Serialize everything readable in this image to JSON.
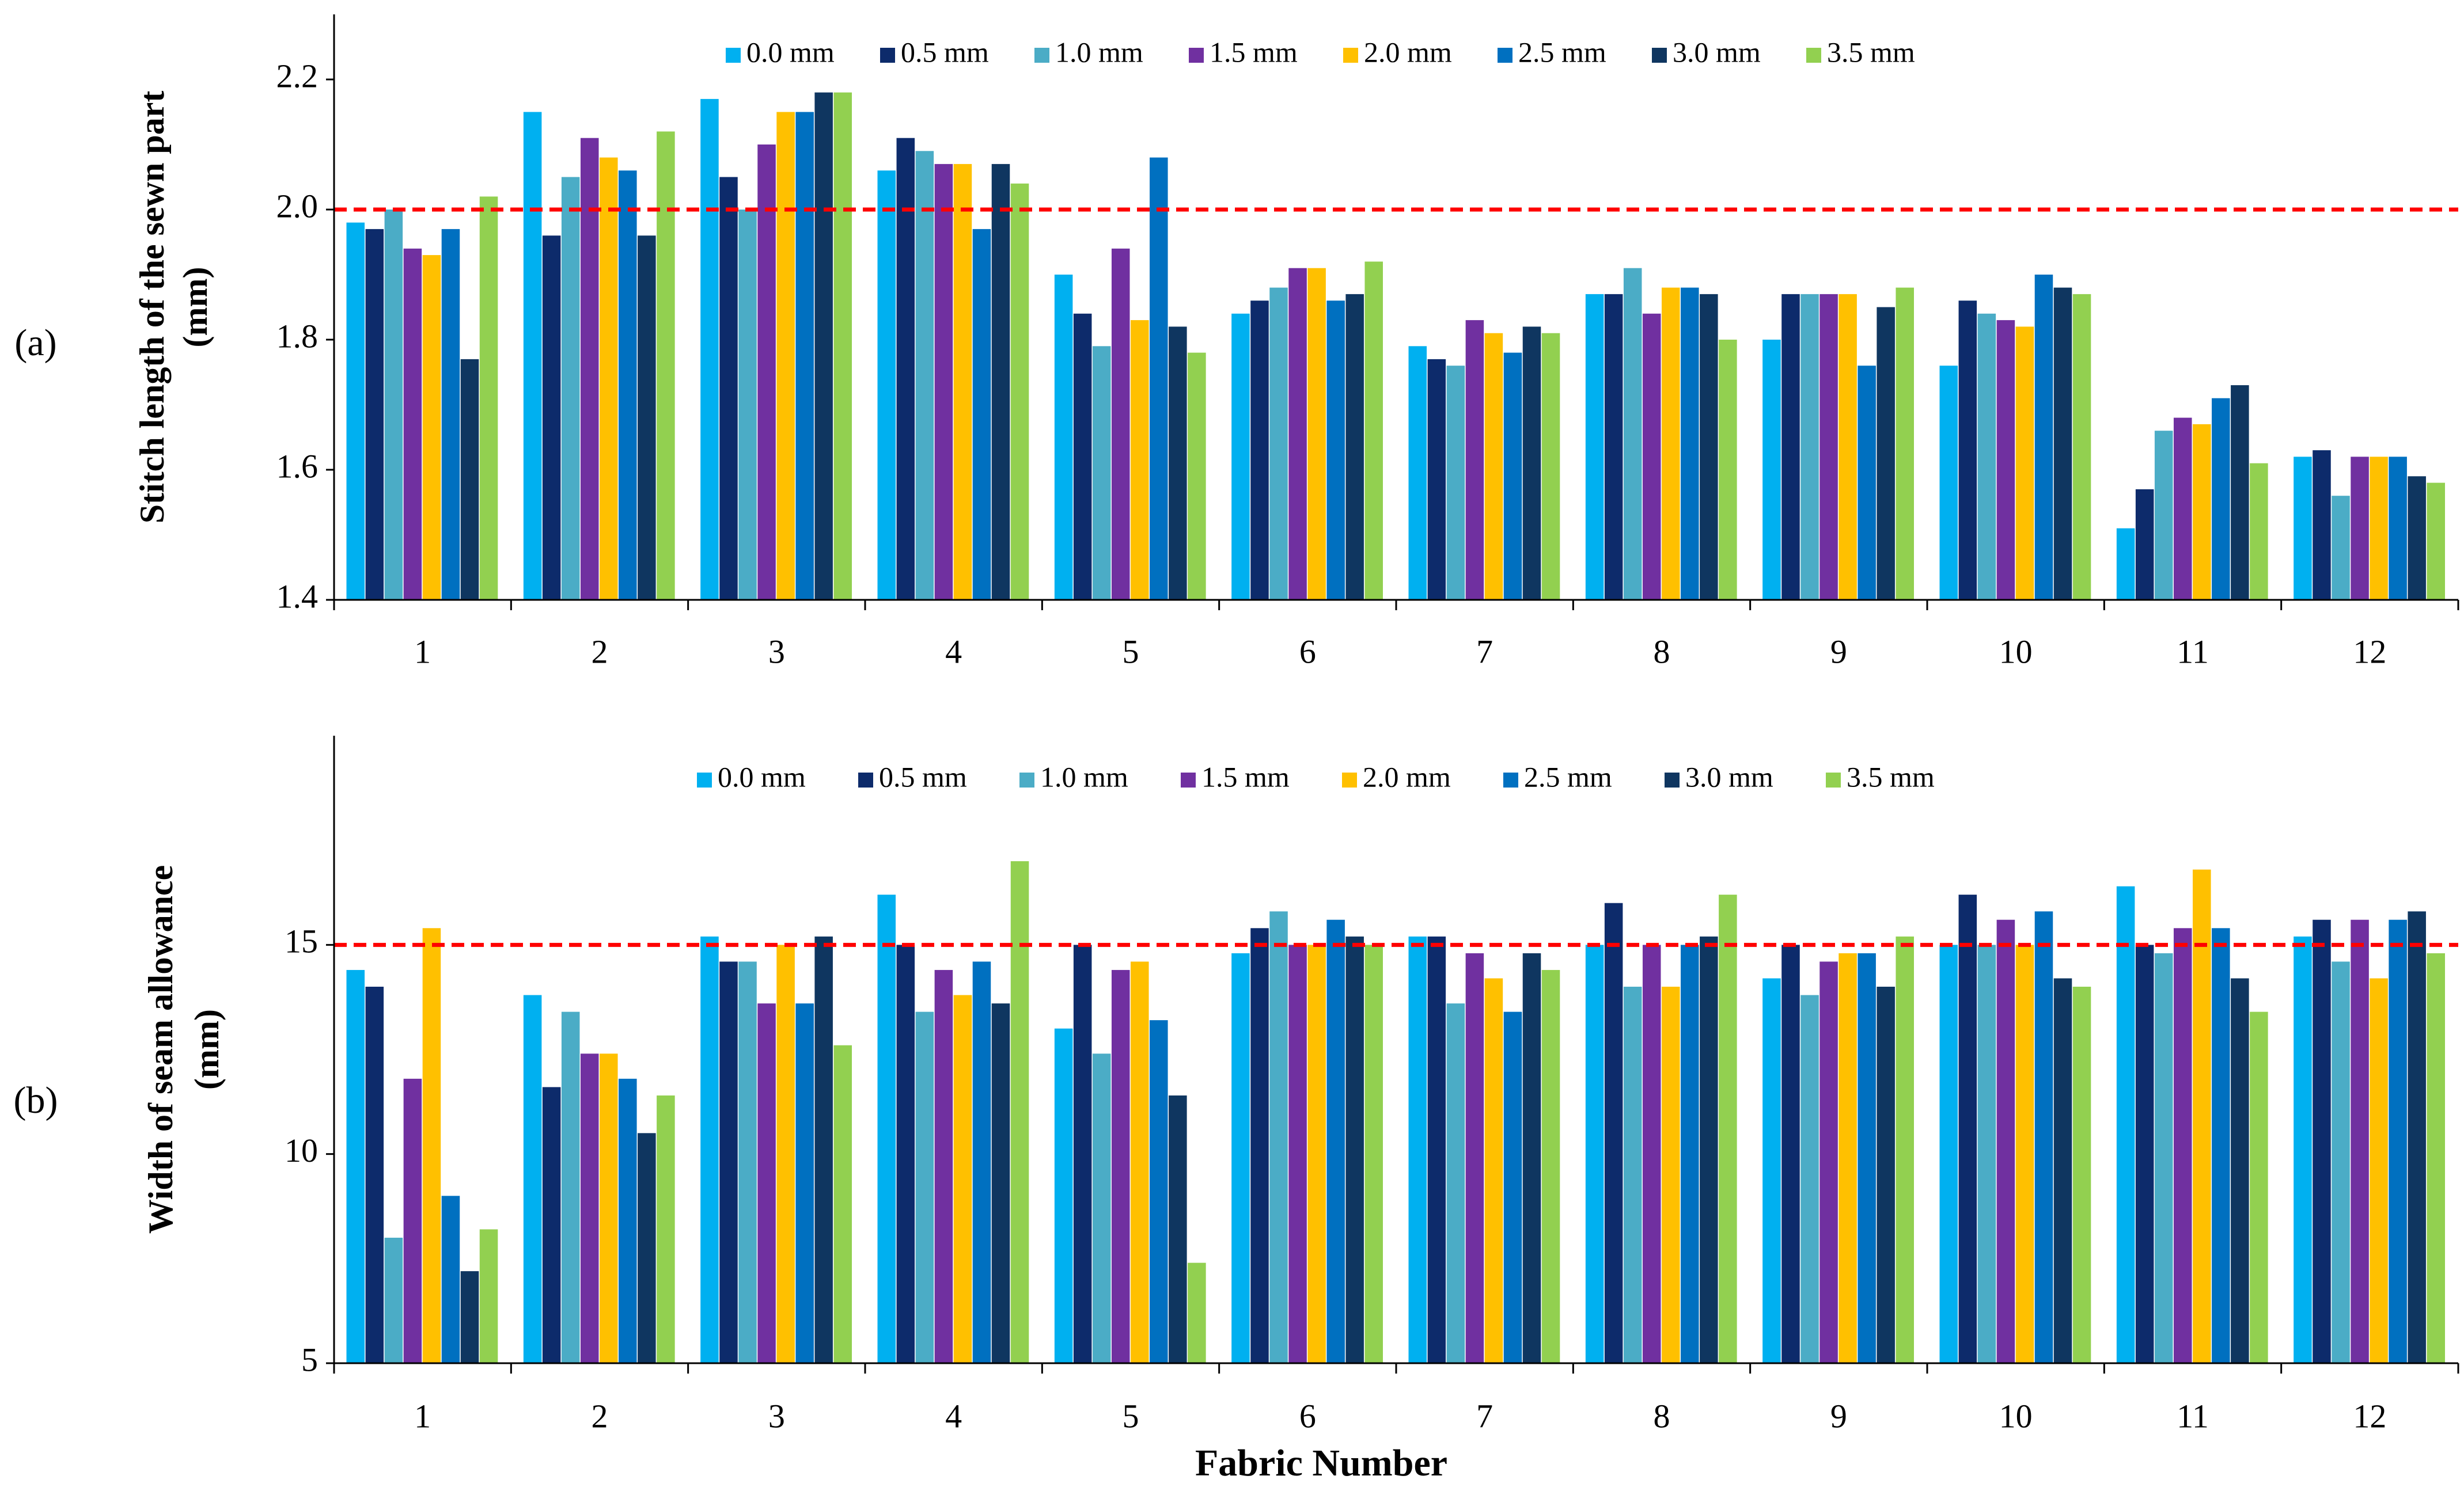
{
  "figure": {
    "panel_labels": [
      "(a)",
      "(b)"
    ],
    "xlabel": "Fabric Number"
  },
  "colors": {
    "series": [
      "#00B0F0",
      "#0D2B6B",
      "#4BACC6",
      "#7030A0",
      "#FFC000",
      "#0070C0",
      "#0F3660",
      "#92D050"
    ],
    "reference_line": "#FF0000",
    "axis": "#000000"
  },
  "chart_data": [
    {
      "type": "bar",
      "panel": "(a)",
      "ylabel_lines": [
        "Stitch length of the sewn part",
        "(mm)"
      ],
      "xlabel": "",
      "categories": [
        "1",
        "2",
        "3",
        "4",
        "5",
        "6",
        "7",
        "8",
        "9",
        "10",
        "11",
        "12"
      ],
      "ylim": [
        1.4,
        2.3
      ],
      "yticks": [
        1.4,
        1.6,
        1.8,
        2.0,
        2.2
      ],
      "ytick_labels": [
        "1.4",
        "1.6",
        "1.8",
        "2.0",
        "2.2"
      ],
      "reference_line": 2.0,
      "legend_position": "top-center",
      "series": [
        {
          "name": "0.0 mm",
          "values": [
            1.98,
            2.15,
            2.17,
            2.06,
            1.9,
            1.84,
            1.79,
            1.87,
            1.8,
            1.76,
            1.51,
            1.62
          ]
        },
        {
          "name": "0.5 mm",
          "values": [
            1.97,
            1.96,
            2.05,
            2.11,
            1.84,
            1.86,
            1.77,
            1.87,
            1.87,
            1.86,
            1.57,
            1.63
          ]
        },
        {
          "name": "1.0 mm",
          "values": [
            2.0,
            2.05,
            2.0,
            2.09,
            1.79,
            1.88,
            1.76,
            1.91,
            1.87,
            1.84,
            1.66,
            1.56
          ]
        },
        {
          "name": "1.5 mm",
          "values": [
            1.94,
            2.11,
            2.1,
            2.07,
            1.94,
            1.91,
            1.83,
            1.84,
            1.87,
            1.83,
            1.68,
            1.62
          ]
        },
        {
          "name": "2.0 mm",
          "values": [
            1.93,
            2.08,
            2.15,
            2.07,
            1.83,
            1.91,
            1.81,
            1.88,
            1.87,
            1.82,
            1.67,
            1.62
          ]
        },
        {
          "name": "2.5 mm",
          "values": [
            1.97,
            2.06,
            2.15,
            1.97,
            2.08,
            1.86,
            1.78,
            1.88,
            1.76,
            1.9,
            1.71,
            1.62
          ]
        },
        {
          "name": "3.0 mm",
          "values": [
            1.77,
            1.96,
            2.18,
            2.07,
            1.82,
            1.87,
            1.82,
            1.87,
            1.85,
            1.88,
            1.73,
            1.59
          ]
        },
        {
          "name": "3.5 mm",
          "values": [
            2.02,
            2.12,
            2.18,
            2.04,
            1.78,
            1.92,
            1.81,
            1.8,
            1.88,
            1.87,
            1.61,
            1.58
          ]
        }
      ]
    },
    {
      "type": "bar",
      "panel": "(b)",
      "ylabel_lines": [
        "Width of seam allowance",
        "(mm)"
      ],
      "xlabel": "Fabric Number",
      "categories": [
        "1",
        "2",
        "3",
        "4",
        "5",
        "6",
        "7",
        "8",
        "9",
        "10",
        "11",
        "12"
      ],
      "ylim": [
        5,
        20
      ],
      "yticks": [
        5,
        10,
        15
      ],
      "ytick_labels": [
        "5",
        "10",
        "15"
      ],
      "reference_line": 15,
      "legend_position": "top-center",
      "series": [
        {
          "name": "0.0 mm",
          "values": [
            14.4,
            13.8,
            15.2,
            16.2,
            13.0,
            14.8,
            15.2,
            15.0,
            14.2,
            15.0,
            16.4,
            15.2
          ]
        },
        {
          "name": "0.5 mm",
          "values": [
            14.0,
            11.6,
            14.6,
            15.0,
            15.0,
            15.4,
            15.2,
            16.0,
            15.0,
            16.2,
            15.0,
            15.6
          ]
        },
        {
          "name": "1.0 mm",
          "values": [
            8.0,
            13.4,
            14.6,
            13.4,
            12.4,
            15.8,
            13.6,
            14.0,
            13.8,
            15.0,
            14.8,
            14.6
          ]
        },
        {
          "name": "1.5 mm",
          "values": [
            11.8,
            12.4,
            13.6,
            14.4,
            14.4,
            15.0,
            14.8,
            15.0,
            14.6,
            15.6,
            15.4,
            15.6
          ]
        },
        {
          "name": "2.0 mm",
          "values": [
            15.4,
            12.4,
            15.0,
            13.8,
            14.6,
            15.0,
            14.2,
            14.0,
            14.8,
            15.0,
            16.8,
            14.2
          ]
        },
        {
          "name": "2.5 mm",
          "values": [
            9.0,
            11.8,
            13.6,
            14.6,
            13.2,
            15.6,
            13.4,
            15.0,
            14.8,
            15.8,
            15.4,
            15.6
          ]
        },
        {
          "name": "3.0 mm",
          "values": [
            7.2,
            10.5,
            15.2,
            13.6,
            11.4,
            15.2,
            14.8,
            15.2,
            14.0,
            14.2,
            14.2,
            15.8
          ]
        },
        {
          "name": "3.5 mm",
          "values": [
            8.2,
            11.4,
            12.6,
            17.0,
            7.4,
            15.0,
            14.4,
            16.2,
            15.2,
            14.0,
            13.4,
            14.8
          ]
        }
      ]
    }
  ]
}
